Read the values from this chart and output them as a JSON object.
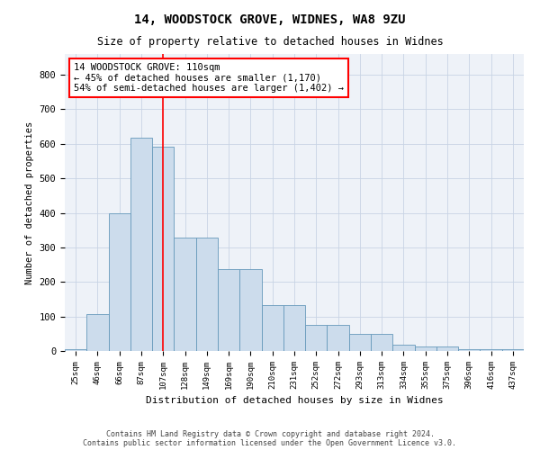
{
  "title1": "14, WOODSTOCK GROVE, WIDNES, WA8 9ZU",
  "title2": "Size of property relative to detached houses in Widnes",
  "xlabel": "Distribution of detached houses by size in Widnes",
  "ylabel": "Number of detached properties",
  "footer1": "Contains HM Land Registry data © Crown copyright and database right 2024.",
  "footer2": "Contains public sector information licensed under the Open Government Licence v3.0.",
  "categories": [
    "25sqm",
    "46sqm",
    "66sqm",
    "87sqm",
    "107sqm",
    "128sqm",
    "149sqm",
    "169sqm",
    "190sqm",
    "210sqm",
    "231sqm",
    "252sqm",
    "272sqm",
    "293sqm",
    "313sqm",
    "334sqm",
    "355sqm",
    "375sqm",
    "396sqm",
    "416sqm",
    "437sqm"
  ],
  "values": [
    5,
    107,
    400,
    617,
    592,
    328,
    328,
    236,
    236,
    133,
    133,
    76,
    76,
    50,
    50,
    17,
    12,
    12,
    5,
    5,
    5
  ],
  "bar_color": "#ccdcec",
  "bar_edge_color": "#6699bb",
  "vline_x": 4.0,
  "vline_color": "red",
  "annotation_text": "14 WOODSTOCK GROVE: 110sqm\n← 45% of detached houses are smaller (1,170)\n54% of semi-detached houses are larger (1,402) →",
  "ylim": [
    0,
    860
  ],
  "yticks": [
    0,
    100,
    200,
    300,
    400,
    500,
    600,
    700,
    800
  ],
  "grid_color": "#c8d4e4",
  "background_color": "#eef2f8",
  "fig_color": "white"
}
